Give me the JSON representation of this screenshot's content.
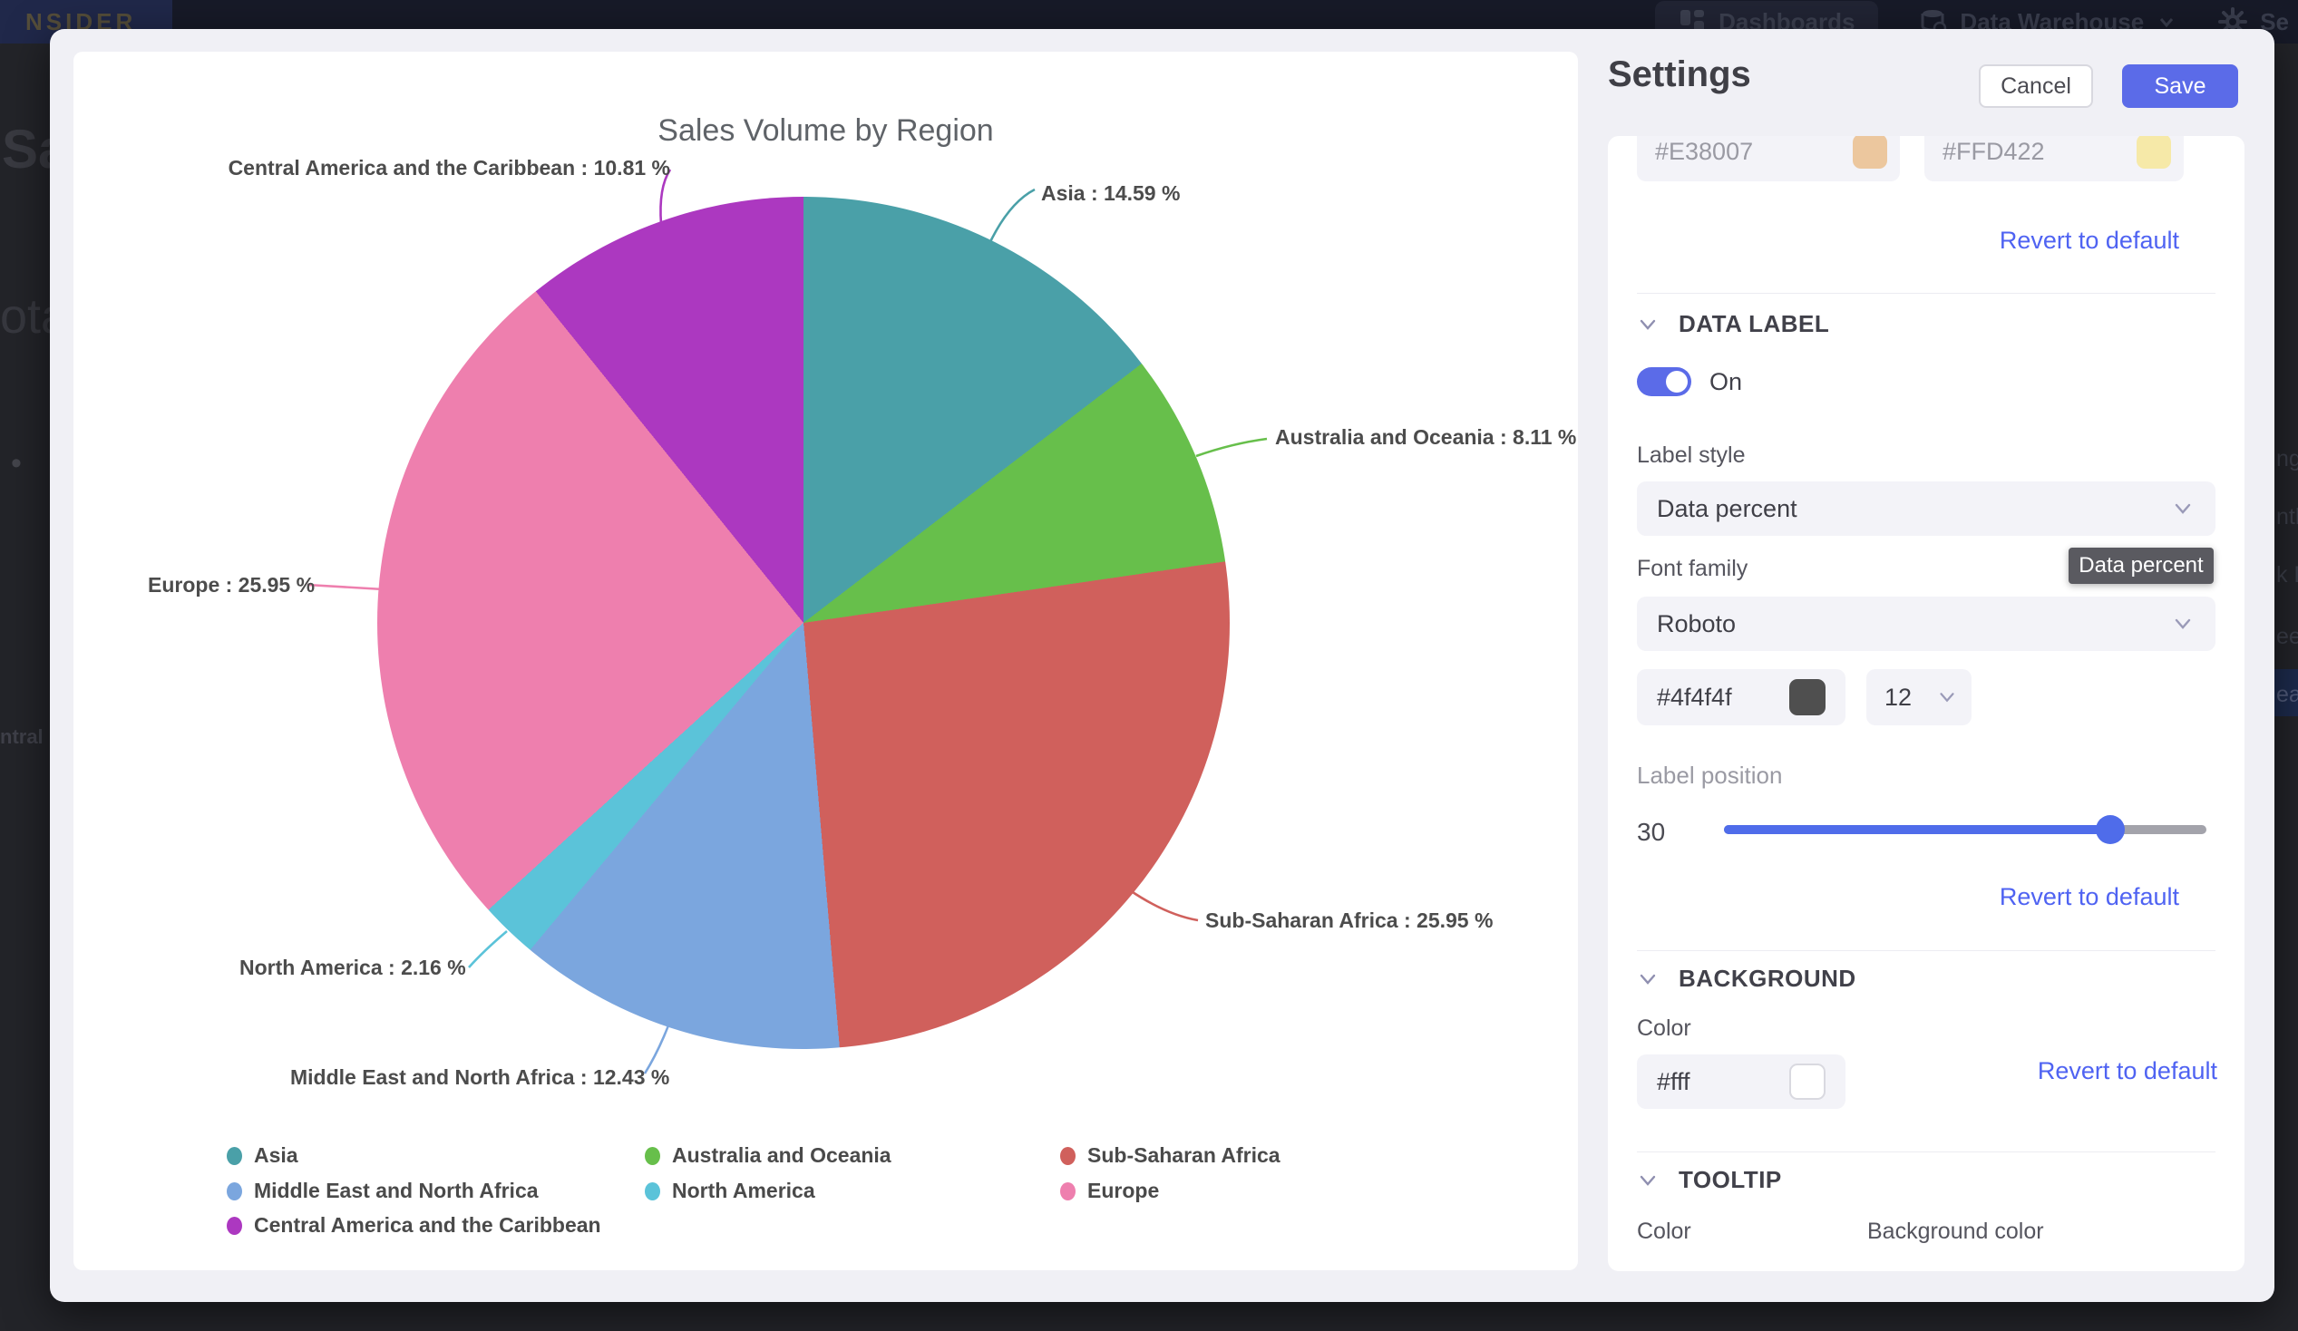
{
  "backdrop": {
    "logo": "NSIDER",
    "nav": {
      "dashboards": "Dashboards",
      "data_warehouse": "Data Warehouse",
      "settings_partial": "Se"
    },
    "left_fragments": [
      "Sal",
      "ota",
      "ntral"
    ],
    "right_fragments": [
      "nge",
      "nth",
      "k D",
      "eek",
      "ear"
    ]
  },
  "chart_data": {
    "type": "pie",
    "title": "Sales Volume by Region",
    "label_format": "{name} : {value} %",
    "legend_position": "bottom",
    "series": [
      {
        "label": "Asia",
        "value": 14.59,
        "color": "#4aa0a8"
      },
      {
        "label": "Australia and Oceania",
        "value": 8.11,
        "color": "#67bf4b"
      },
      {
        "label": "Sub-Saharan Africa",
        "value": 25.95,
        "color": "#d0605c"
      },
      {
        "label": "Middle East and North Africa",
        "value": 12.43,
        "color": "#7ba6de"
      },
      {
        "label": "North America",
        "value": 2.16,
        "color": "#5bc3d9"
      },
      {
        "label": "Europe",
        "value": 25.95,
        "color": "#ee7fae"
      },
      {
        "label": "Central America and the Caribbean",
        "value": 10.81,
        "color": "#ac38c0"
      }
    ]
  },
  "settings": {
    "title": "Settings",
    "cancel_label": "Cancel",
    "save_label": "Save",
    "revert_label": "Revert to default",
    "color_inputs": [
      {
        "value": "#E38007",
        "swatch": "#ecc79e"
      },
      {
        "value": "#FFD422",
        "swatch": "#f6e9a8"
      }
    ],
    "data_label": {
      "section": "DATA LABEL",
      "toggle_state": "On",
      "label_style_label": "Label style",
      "label_style_value": "Data percent",
      "font_family_label": "Font family",
      "font_family_value": "Roboto",
      "tooltip": "Data percent",
      "font_color": "#4f4f4f",
      "font_size": "12",
      "label_position_label": "Label position",
      "label_position_value": "30"
    },
    "background": {
      "section": "BACKGROUND",
      "color_label": "Color",
      "color_value": "#fff"
    },
    "tooltip_section": {
      "section": "TOOLTIP",
      "color_label": "Color",
      "background_color_label": "Background color"
    }
  },
  "colors": {
    "accent": "#5b6be8",
    "link": "#4f63f2",
    "modal_bg": "#f0f0f5",
    "label_font_swatch": "#4f4f4f",
    "background_swatch": "#ffffff"
  }
}
